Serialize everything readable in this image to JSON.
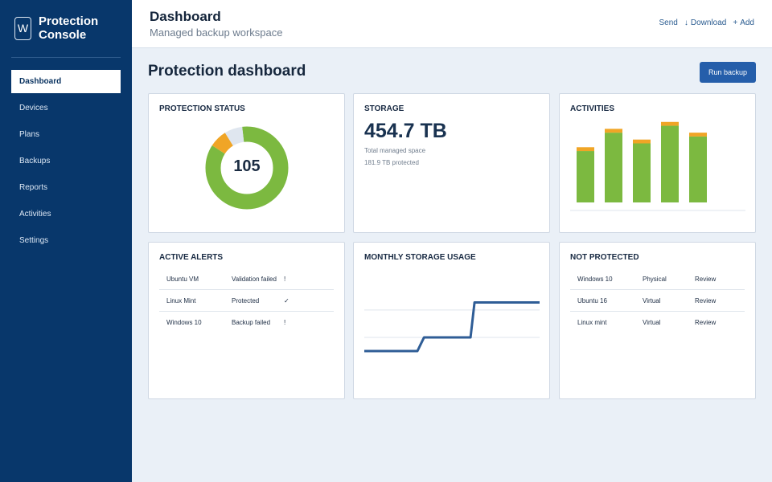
{
  "app": {
    "logo_letter": "W",
    "brand_title": "Protection Console"
  },
  "sidebar": {
    "items": [
      {
        "label": "Dashboard",
        "active": true
      },
      {
        "label": "Devices",
        "active": false
      },
      {
        "label": "Plans",
        "active": false
      },
      {
        "label": "Backups",
        "active": false
      },
      {
        "label": "Reports",
        "active": false
      },
      {
        "label": "Activities",
        "active": false
      },
      {
        "label": "Settings",
        "active": false
      }
    ]
  },
  "header": {
    "title": "Dashboard",
    "subtitle": "Managed backup workspace",
    "actions": {
      "send": "Send",
      "download_icon": "↓",
      "download": "Download",
      "add_icon": "+",
      "add": "Add"
    }
  },
  "main": {
    "title": "Protection dashboard",
    "run_button": "Run backup"
  },
  "protection_status": {
    "title": "PROTECTION STATUS",
    "value": "105",
    "colors": {
      "protected": "#7cb940",
      "warning": "#f0a526",
      "unknown": "#dfe6ef"
    },
    "segments": [
      {
        "key": "protected",
        "fraction": 0.86
      },
      {
        "key": "warning",
        "fraction": 0.07
      },
      {
        "key": "unknown",
        "fraction": 0.07
      }
    ]
  },
  "storage": {
    "title": "STORAGE",
    "value": "454.7 TB",
    "caption": "Total managed space",
    "protected": "181.9 TB protected"
  },
  "activities": {
    "title": "ACTIVITIES",
    "colors": {
      "success": "#7cb940",
      "warning": "#f0a526"
    },
    "values": [
      {
        "success": 67,
        "warning": 5
      },
      {
        "success": 91,
        "warning": 5
      },
      {
        "success": 77,
        "warning": 5
      },
      {
        "success": 100,
        "warning": 5
      },
      {
        "success": 86,
        "warning": 5
      }
    ],
    "ylim": [
      0,
      110
    ]
  },
  "alerts": {
    "title": "ACTIVE ALERTS",
    "rows": [
      {
        "name": "Ubuntu VM",
        "status": "Validation failed",
        "mark": "!"
      },
      {
        "name": "Linux Mint",
        "status": "Protected",
        "mark": "✓"
      },
      {
        "name": "Windows 10",
        "status": "Backup failed",
        "mark": "!"
      }
    ]
  },
  "monthly_storage": {
    "title": "MONTHLY STORAGE USAGE",
    "color": "#2f5d96",
    "grid_color": "#dfe5ec",
    "points": [
      {
        "x": 0,
        "y": 20
      },
      {
        "x": 1,
        "y": 20
      },
      {
        "x": 2,
        "y": 20
      },
      {
        "x": 2.25,
        "y": 31
      },
      {
        "x": 3,
        "y": 31
      },
      {
        "x": 4,
        "y": 31
      },
      {
        "x": 4.15,
        "y": 59
      },
      {
        "x": 5,
        "y": 59
      },
      {
        "x": 6.6,
        "y": 59
      }
    ],
    "xlim": [
      0,
      6.6
    ],
    "ylim": [
      0,
      80
    ],
    "grid_values": [
      31,
      53
    ]
  },
  "not_protected": {
    "title": "NOT PROTECTED",
    "rows": [
      {
        "name": "Windows 10",
        "type": "Physical",
        "action": "Review"
      },
      {
        "name": "Ubuntu 16",
        "type": "Virtual",
        "action": "Review"
      },
      {
        "name": "Linux mint",
        "type": "Virtual",
        "action": "Review"
      }
    ]
  }
}
